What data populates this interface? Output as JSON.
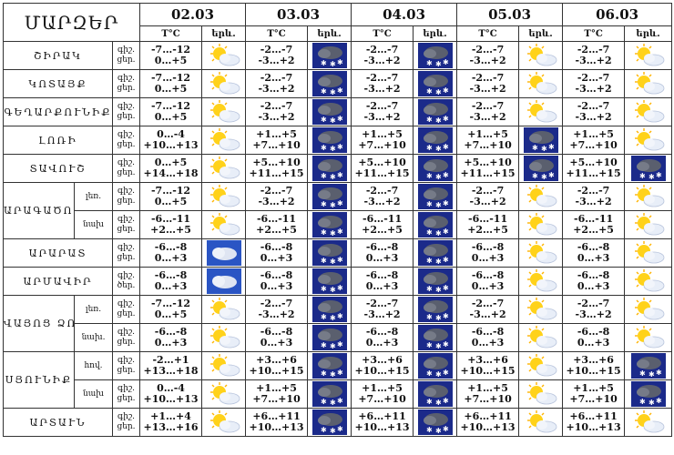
{
  "header": {
    "marz": "ՄԱՐԶԵՐ",
    "dates": [
      "02.03",
      "03.03",
      "04.03",
      "05.03",
      "06.03"
    ],
    "temp_label": "T°C",
    "phen_label": "երև."
  },
  "labels": {
    "night": "գիշ.",
    "day": "ցեր.",
    "day_alt": "ծեր."
  },
  "colors": {
    "sun": "#ffd21a",
    "snow_bg": "#1b2a8a",
    "cloud_bg": "#2a55c4"
  },
  "rows": [
    {
      "region": "ՇԻՐԱԿ",
      "sub": "",
      "dn": [
        "գիշ.",
        "ցեր."
      ],
      "cells": [
        {
          "n": "-7…-12",
          "d": "0…+5",
          "icon": "sun-cloud-icon"
        },
        {
          "n": "-2…-7",
          "d": "-3…+2",
          "icon": "snow-cloud-icon"
        },
        {
          "n": "-2…-7",
          "d": "-3…+2",
          "icon": "snow-cloud-icon"
        },
        {
          "n": "-2…-7",
          "d": "-3…+2",
          "icon": "sun-cloud-icon"
        },
        {
          "n": "-2…-7",
          "d": "-3…+2",
          "icon": "sun-cloud-icon"
        }
      ]
    },
    {
      "region": "ԿՈՏԱՅՔ",
      "sub": "",
      "dn": [
        "գիշ.",
        "ցեր."
      ],
      "cells": [
        {
          "n": "-7…-12",
          "d": "0…+5",
          "icon": "sun-cloud-icon"
        },
        {
          "n": "-2…-7",
          "d": "-3…+2",
          "icon": "snow-cloud-icon"
        },
        {
          "n": "-2…-7",
          "d": "-3…+2",
          "icon": "snow-cloud-icon"
        },
        {
          "n": "-2…-7",
          "d": "-3…+2",
          "icon": "sun-cloud-icon"
        },
        {
          "n": "-2…-7",
          "d": "-3…+2",
          "icon": "sun-cloud-icon"
        }
      ]
    },
    {
      "region": "ԳԵՂԱՐՔՈՒՆԻՔ",
      "sub": "",
      "dn": [
        "գիշ.",
        "ցեր."
      ],
      "cells": [
        {
          "n": "-7…-12",
          "d": "0…+5",
          "icon": "sun-cloud-icon"
        },
        {
          "n": "-2…-7",
          "d": "-3…+2",
          "icon": "snow-cloud-icon"
        },
        {
          "n": "-2…-7",
          "d": "-3…+2",
          "icon": "snow-cloud-icon"
        },
        {
          "n": "-2…-7",
          "d": "-3…+2",
          "icon": "sun-cloud-icon"
        },
        {
          "n": "-2…-7",
          "d": "-3…+2",
          "icon": "sun-cloud-icon"
        }
      ]
    },
    {
      "region": "ԼՈՌԻ",
      "sub": "",
      "dn": [
        "գիշ.",
        "ցեր."
      ],
      "cells": [
        {
          "n": "0…-4",
          "d": "+10…+13",
          "icon": "sun-cloud-icon"
        },
        {
          "n": "+1…+5",
          "d": "+7…+10",
          "icon": "snow-cloud-icon"
        },
        {
          "n": "+1…+5",
          "d": "+7…+10",
          "icon": "snow-cloud-icon"
        },
        {
          "n": "+1…+5",
          "d": "+7…+10",
          "icon": "snow-cloud-icon"
        },
        {
          "n": "+1…+5",
          "d": "+7…+10",
          "icon": "sun-cloud-icon"
        }
      ]
    },
    {
      "region": "ՏԱՎՈՒՇ",
      "sub": "",
      "dn": [
        "գիշ.",
        "ցեր."
      ],
      "cells": [
        {
          "n": "0…+5",
          "d": "+14…+18",
          "icon": "sun-cloud-icon"
        },
        {
          "n": "+5…+10",
          "d": "+11…+15",
          "icon": "snow-cloud-icon"
        },
        {
          "n": "+5…+10",
          "d": "+11…+15",
          "icon": "snow-cloud-icon"
        },
        {
          "n": "+5…+10",
          "d": "+11…+15",
          "icon": "snow-cloud-icon"
        },
        {
          "n": "+5…+10",
          "d": "+11…+15",
          "icon": "snow-cloud-icon"
        }
      ]
    },
    {
      "region": "ԱՐԱԳԱԾՈՏՆ",
      "sub": "լեռ.",
      "dn": [
        "գիշ.",
        "ցեր."
      ],
      "cells": [
        {
          "n": "-7…-12",
          "d": "0…+5",
          "icon": "sun-cloud-icon"
        },
        {
          "n": "-2…-7",
          "d": "-3…+2",
          "icon": "snow-cloud-icon"
        },
        {
          "n": "-2…-7",
          "d": "-3…+2",
          "icon": "snow-cloud-icon"
        },
        {
          "n": "-2…-7",
          "d": "-3…+2",
          "icon": "sun-cloud-icon"
        },
        {
          "n": "-2…-7",
          "d": "-3…+2",
          "icon": "sun-cloud-icon"
        }
      ]
    },
    {
      "region": "",
      "sub": "նախ",
      "dn": [
        "գիշ.",
        "ցեր."
      ],
      "cells": [
        {
          "n": "-6…-11",
          "d": "+2…+5",
          "icon": "sun-cloud-icon"
        },
        {
          "n": "-6…-11",
          "d": "+2…+5",
          "icon": "snow-cloud-icon"
        },
        {
          "n": "-6…-11",
          "d": "+2…+5",
          "icon": "snow-cloud-icon"
        },
        {
          "n": "-6…-11",
          "d": "+2…+5",
          "icon": "sun-cloud-icon"
        },
        {
          "n": "-6…-11",
          "d": "+2…+5",
          "icon": "sun-cloud-icon"
        }
      ]
    },
    {
      "region": "ԱՐԱՐԱՏ",
      "sub": "",
      "dn": [
        "գիշ.",
        "ցեր."
      ],
      "cells": [
        {
          "n": "-6…-8",
          "d": "0…+3",
          "icon": "cloud-icon"
        },
        {
          "n": "-6…-8",
          "d": "0…+3",
          "icon": "snow-cloud-icon"
        },
        {
          "n": "-6…-8",
          "d": "0…+3",
          "icon": "snow-cloud-icon"
        },
        {
          "n": "-6…-8",
          "d": "0…+3",
          "icon": "sun-cloud-icon"
        },
        {
          "n": "-6…-8",
          "d": "0…+3",
          "icon": "sun-cloud-icon"
        }
      ]
    },
    {
      "region": "ԱՐՄԱՎԻՐ",
      "sub": "",
      "dn": [
        "գիշ.",
        "ծեր."
      ],
      "cells": [
        {
          "n": "-6…-8",
          "d": "0…+3",
          "icon": "cloud-icon"
        },
        {
          "n": "-6…-8",
          "d": "0…+3",
          "icon": "snow-cloud-icon"
        },
        {
          "n": "-6…-8",
          "d": "0…+3",
          "icon": "snow-cloud-icon"
        },
        {
          "n": "-6…-8",
          "d": "0…+3",
          "icon": "sun-cloud-icon"
        },
        {
          "n": "-6…-8",
          "d": "0…+3",
          "icon": "sun-cloud-icon"
        }
      ]
    },
    {
      "region": "ՎԱՅՈՑ ՁՈՐ",
      "sub": "լեռ.",
      "dn": [
        "գիշ.",
        "ցեր."
      ],
      "cells": [
        {
          "n": "-7…-12",
          "d": "0…+5",
          "icon": "sun-cloud-icon"
        },
        {
          "n": "-2…-7",
          "d": "-3…+2",
          "icon": "snow-cloud-icon"
        },
        {
          "n": "-2…-7",
          "d": "-3…+2",
          "icon": "snow-cloud-icon"
        },
        {
          "n": "-2…-7",
          "d": "-3…+2",
          "icon": "sun-cloud-icon"
        },
        {
          "n": "-2…-7",
          "d": "-3…+2",
          "icon": "sun-cloud-icon"
        }
      ]
    },
    {
      "region": "",
      "sub": "նախ.",
      "dn": [
        "գիշ.",
        "ցեր."
      ],
      "cells": [
        {
          "n": "-6…-8",
          "d": "0…+3",
          "icon": "sun-cloud-icon"
        },
        {
          "n": "-6…-8",
          "d": "0…+3",
          "icon": "snow-cloud-icon"
        },
        {
          "n": "-6…-8",
          "d": "0…+3",
          "icon": "snow-cloud-icon"
        },
        {
          "n": "-6…-8",
          "d": "0…+3",
          "icon": "sun-cloud-icon"
        },
        {
          "n": "-6…-8",
          "d": "0…+3",
          "icon": "sun-cloud-icon"
        }
      ]
    },
    {
      "region": "ՍՅՈՒՆԻՔ",
      "sub": "հով.",
      "dn": [
        "գիշ.",
        "ցեր."
      ],
      "cells": [
        {
          "n": "-2…+1",
          "d": "+13…+18",
          "icon": "sun-cloud-icon"
        },
        {
          "n": "+3…+6",
          "d": "+10…+15",
          "icon": "snow-cloud-icon"
        },
        {
          "n": "+3…+6",
          "d": "+10…+15",
          "icon": "snow-cloud-icon"
        },
        {
          "n": "+3…+6",
          "d": "+10…+15",
          "icon": "sun-cloud-icon"
        },
        {
          "n": "+3…+6",
          "d": "+10…+15",
          "icon": "snow-cloud-icon"
        }
      ]
    },
    {
      "region": "",
      "sub": "նախ",
      "dn": [
        "գիշ.",
        "ցեր."
      ],
      "cells": [
        {
          "n": "0…-4",
          "d": "+10…+13",
          "icon": "sun-cloud-icon"
        },
        {
          "n": "+1…+5",
          "d": "+7…+10",
          "icon": "snow-cloud-icon"
        },
        {
          "n": "+1…+5",
          "d": "+7…+10",
          "icon": "snow-cloud-icon"
        },
        {
          "n": "+1…+5",
          "d": "+7…+10",
          "icon": "sun-cloud-icon"
        },
        {
          "n": "+1…+5",
          "d": "+7…+10",
          "icon": "snow-cloud-icon"
        }
      ]
    },
    {
      "region": "ԱՐՏԱՒՆ",
      "sub": "",
      "dn": [
        "գիշ.",
        "ցեր."
      ],
      "cells": [
        {
          "n": "+1…+4",
          "d": "+13…+16",
          "icon": "sun-cloud-icon"
        },
        {
          "n": "+6…+11",
          "d": "+10…+13",
          "icon": "snow-cloud-icon"
        },
        {
          "n": "+6…+11",
          "d": "+10…+13",
          "icon": "snow-cloud-icon"
        },
        {
          "n": "+6…+11",
          "d": "+10…+13",
          "icon": "sun-cloud-icon"
        },
        {
          "n": "+6…+11",
          "d": "+10…+13",
          "icon": "sun-cloud-icon"
        }
      ]
    }
  ]
}
